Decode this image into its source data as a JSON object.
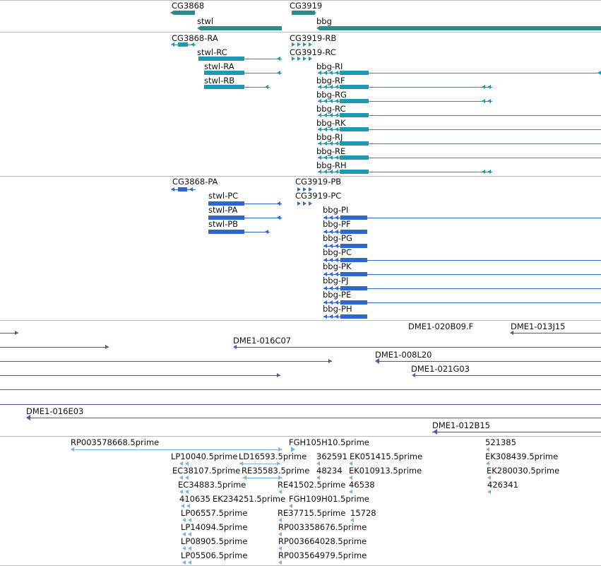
{
  "colors": {
    "gene": "#2e8b8b",
    "transcript": "#1a9bb3",
    "protein": "#2f66cc",
    "clone": "#6a4aaa",
    "est": "#7fb3d8",
    "separator": "#bdbdbd"
  },
  "tracks": {
    "genes": [
      {
        "id": "gene-cg3868",
        "label": "CG3868"
      },
      {
        "id": "gene-cg3919",
        "label": "CG3919"
      },
      {
        "id": "gene-stwl",
        "label": "stwl"
      },
      {
        "id": "gene-bbg",
        "label": "bbg"
      }
    ],
    "transcripts": [
      {
        "id": "tx-cg3868-ra",
        "label": "CG3868-RA"
      },
      {
        "id": "tx-cg3919-rb",
        "label": "CG3919-RB"
      },
      {
        "id": "tx-stwl-rc",
        "label": "stwl-RC"
      },
      {
        "id": "tx-cg3919-rc",
        "label": "CG3919-RC"
      },
      {
        "id": "tx-stwl-ra",
        "label": "stwl-RA"
      },
      {
        "id": "tx-stwl-rb",
        "label": "stwl-RB"
      },
      {
        "id": "tx-bbg-ri",
        "label": "bbg-RI"
      },
      {
        "id": "tx-bbg-rf",
        "label": "bbg-RF"
      },
      {
        "id": "tx-bbg-rg",
        "label": "bbg-RG"
      },
      {
        "id": "tx-bbg-rc",
        "label": "bbg-RC"
      },
      {
        "id": "tx-bbg-rk",
        "label": "bbg-RK"
      },
      {
        "id": "tx-bbg-rj",
        "label": "bbg-RJ"
      },
      {
        "id": "tx-bbg-re",
        "label": "bbg-RE"
      },
      {
        "id": "tx-bbg-rh",
        "label": "bbg-RH"
      }
    ],
    "proteins": [
      {
        "id": "pr-cg3868-pa",
        "label": "CG3868-PA"
      },
      {
        "id": "pr-cg3919-pb",
        "label": "CG3919-PB"
      },
      {
        "id": "pr-stwl-pc",
        "label": "stwl-PC"
      },
      {
        "id": "pr-cg3919-pc",
        "label": "CG3919-PC"
      },
      {
        "id": "pr-stwl-pa",
        "label": "stwl-PA"
      },
      {
        "id": "pr-stwl-pb",
        "label": "stwl-PB"
      },
      {
        "id": "pr-bbg-pi",
        "label": "bbg-PI"
      },
      {
        "id": "pr-bbg-pf",
        "label": "bbg-PF"
      },
      {
        "id": "pr-bbg-pg",
        "label": "bbg-PG"
      },
      {
        "id": "pr-bbg-pc",
        "label": "bbg-PC"
      },
      {
        "id": "pr-bbg-pk",
        "label": "bbg-PK"
      },
      {
        "id": "pr-bbg-pj",
        "label": "bbg-PJ"
      },
      {
        "id": "pr-bbg-pe",
        "label": "bbg-PE"
      },
      {
        "id": "pr-bbg-ph",
        "label": "bbg-PH"
      }
    ],
    "clones": [
      {
        "id": "cl-020b09",
        "label": "DME1-020B09.F"
      },
      {
        "id": "cl-013j15",
        "label": "DME1-013J15"
      },
      {
        "id": "cl-016c07",
        "label": "DME1-016C07"
      },
      {
        "id": "cl-008l20",
        "label": "DME1-008L20"
      },
      {
        "id": "cl-021g03",
        "label": "DME1-021G03"
      },
      {
        "id": "cl-016e03",
        "label": "DME1-016E03"
      },
      {
        "id": "cl-012b15",
        "label": "DME1-012B15"
      }
    ],
    "ests": [
      {
        "id": "est-rp003578668",
        "label": "RP003578668.5prime"
      },
      {
        "id": "est-fgh105h10",
        "label": "FGH105H10.5prime"
      },
      {
        "id": "est-521385",
        "label": "521385"
      },
      {
        "id": "est-lp10040",
        "label": "LP10040.5prime"
      },
      {
        "id": "est-ld16593",
        "label": "LD16593.5prime"
      },
      {
        "id": "est-362591",
        "label": "362591"
      },
      {
        "id": "est-ek051415",
        "label": "EK051415.5prime"
      },
      {
        "id": "est-ek308439",
        "label": "EK308439.5prime"
      },
      {
        "id": "est-ec38107",
        "label": "EC38107.5prime"
      },
      {
        "id": "est-re35583",
        "label": "RE35583.5prime"
      },
      {
        "id": "est-48234",
        "label": "48234"
      },
      {
        "id": "est-ek010913",
        "label": "EK010913.5prime"
      },
      {
        "id": "est-ek280030",
        "label": "EK280030.5prime"
      },
      {
        "id": "est-ec34883",
        "label": "EC34883.5prime"
      },
      {
        "id": "est-re41502",
        "label": "RE41502.5prime"
      },
      {
        "id": "est-46538",
        "label": "46538"
      },
      {
        "id": "est-426341",
        "label": "426341"
      },
      {
        "id": "est-410635",
        "label": "410635"
      },
      {
        "id": "est-ek234251",
        "label": "EK234251.5prime"
      },
      {
        "id": "est-fgh109h01",
        "label": "FGH109H01.5prime"
      },
      {
        "id": "est-lp06557",
        "label": "LP06557.5prime"
      },
      {
        "id": "est-re37715",
        "label": "RE37715.5prime"
      },
      {
        "id": "est-15728",
        "label": "15728"
      },
      {
        "id": "est-lp14094",
        "label": "LP14094.5prime"
      },
      {
        "id": "est-rp003358676",
        "label": "RP003358676.5prime"
      },
      {
        "id": "est-lp08905",
        "label": "LP08905.5prime"
      },
      {
        "id": "est-rp003664028",
        "label": "RP003664028.5prime"
      },
      {
        "id": "est-lp05506",
        "label": "LP05506.5prime"
      },
      {
        "id": "est-rp003564979",
        "label": "RP003564979.5prime"
      }
    ]
  }
}
